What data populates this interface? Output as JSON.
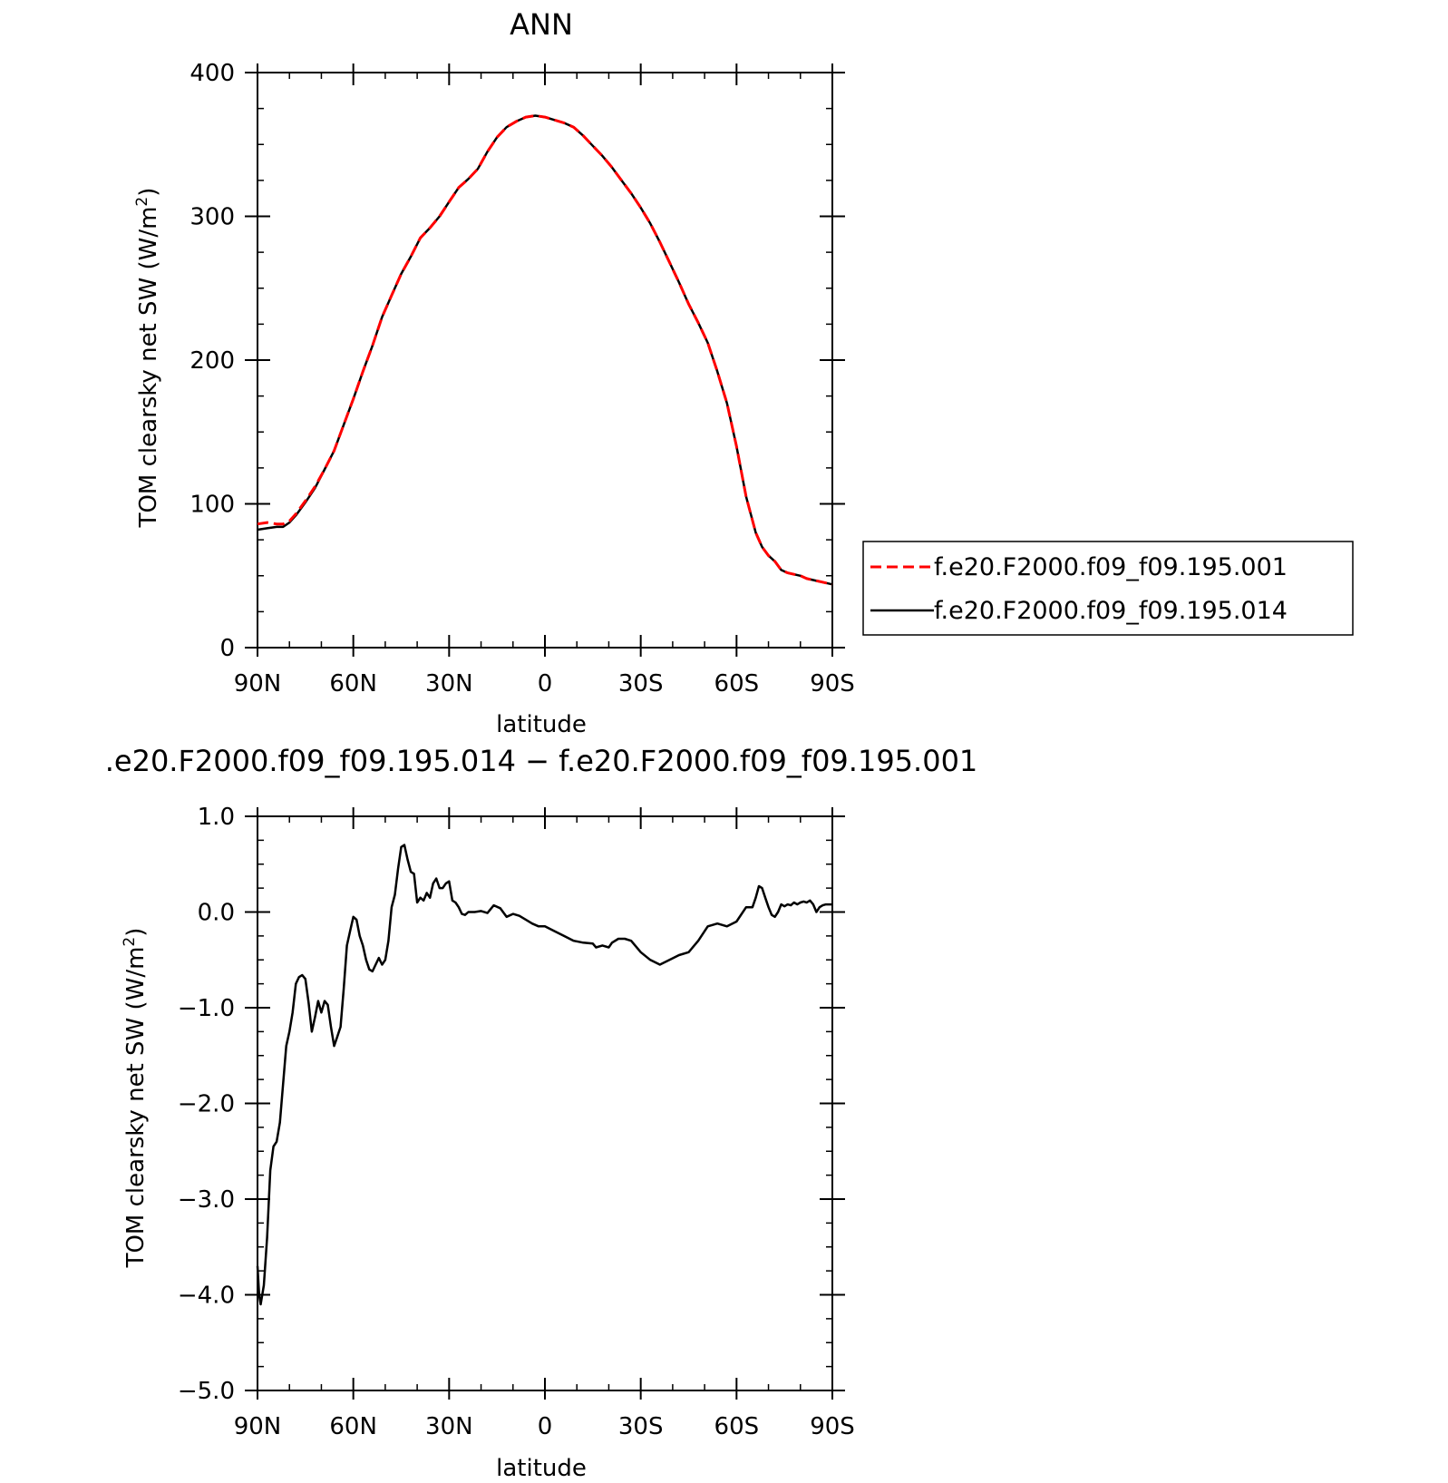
{
  "chart_data": [
    {
      "type": "line",
      "title": "ANN",
      "xlabel": "latitude",
      "ylabel": "TOM clearsky net SW (W/m²)",
      "ylabel_main": "TOM clearsky net SW (W/m",
      "ylabel_sup": "2",
      "ylabel_end": ")",
      "xlim": [
        90,
        -90
      ],
      "ylim": [
        0,
        400
      ],
      "x_ticks": [
        {
          "value": 90,
          "label": "90N"
        },
        {
          "value": 60,
          "label": "60N"
        },
        {
          "value": 30,
          "label": "30N"
        },
        {
          "value": 0,
          "label": "0"
        },
        {
          "value": -30,
          "label": "30S"
        },
        {
          "value": -60,
          "label": "60S"
        },
        {
          "value": -90,
          "label": "90S"
        }
      ],
      "y_ticks": [
        {
          "value": 0,
          "label": "0"
        },
        {
          "value": 100,
          "label": "100"
        },
        {
          "value": 200,
          "label": "200"
        },
        {
          "value": 300,
          "label": "300"
        },
        {
          "value": 400,
          "label": "400"
        }
      ],
      "legend_position": "right",
      "series": [
        {
          "name": "f.e20.F2000.f09_f09.195.001",
          "color": "#ff0000",
          "dash": "dashed",
          "x": [
            90,
            87,
            84,
            82,
            80,
            78,
            75,
            72,
            69,
            66,
            63,
            60,
            57,
            54,
            51,
            48,
            45,
            42,
            39,
            36,
            33,
            30,
            27,
            24,
            21,
            18,
            15,
            12,
            9,
            6,
            3,
            0,
            -3,
            -6,
            -9,
            -12,
            -15,
            -18,
            -21,
            -24,
            -27,
            -30,
            -33,
            -36,
            -39,
            -42,
            -45,
            -48,
            -51,
            -54,
            -57,
            -60,
            -63,
            -66,
            -68,
            -70,
            -72,
            -74,
            -76,
            -78,
            -80,
            -82,
            -84,
            -86,
            -88,
            -90
          ],
          "y": [
            86,
            87,
            86,
            86,
            88,
            93,
            102,
            112,
            124,
            137,
            155,
            173,
            192,
            210,
            230,
            245,
            260,
            272,
            285,
            292,
            300,
            310,
            320,
            326,
            333,
            345,
            355,
            362,
            366,
            369,
            370,
            369,
            367,
            365,
            362,
            356,
            349,
            342,
            334,
            325,
            316,
            306,
            295,
            282,
            268,
            254,
            239,
            226,
            212,
            192,
            170,
            140,
            105,
            80,
            70,
            64,
            60,
            54,
            52,
            51,
            50,
            48,
            47,
            46,
            45,
            44
          ]
        },
        {
          "name": "f.e20.F2000.f09_f09.195.014",
          "color": "#000000",
          "dash": "solid",
          "x": [
            90,
            87,
            84,
            82,
            80,
            78,
            75,
            72,
            69,
            66,
            63,
            60,
            57,
            54,
            51,
            48,
            45,
            42,
            39,
            36,
            33,
            30,
            27,
            24,
            21,
            18,
            15,
            12,
            9,
            6,
            3,
            0,
            -3,
            -6,
            -9,
            -12,
            -15,
            -18,
            -21,
            -24,
            -27,
            -30,
            -33,
            -36,
            -39,
            -42,
            -45,
            -48,
            -51,
            -54,
            -57,
            -60,
            -63,
            -66,
            -68,
            -70,
            -72,
            -74,
            -76,
            -78,
            -80,
            -82,
            -84,
            -86,
            -88,
            -90
          ],
          "y": [
            82,
            83,
            84,
            84,
            87,
            92,
            101,
            111,
            124,
            137,
            155,
            173,
            192,
            210,
            230,
            245,
            260,
            272,
            285,
            292,
            300,
            310,
            320,
            326,
            333,
            345,
            355,
            362,
            366,
            369,
            370,
            369,
            367,
            365,
            362,
            356,
            349,
            342,
            334,
            325,
            316,
            306,
            295,
            282,
            268,
            254,
            239,
            226,
            212,
            192,
            170,
            140,
            105,
            80,
            70,
            64,
            60,
            54,
            52,
            51,
            50,
            48,
            47,
            46,
            45,
            44
          ]
        }
      ]
    },
    {
      "type": "line",
      "title": ".e20.F2000.f09_f09.195.014 − f.e20.F2000.f09_f09.195.001",
      "xlabel": "latitude",
      "ylabel": "TOM clearsky net SW (W/m²)",
      "ylabel_main": "TOM clearsky net SW (W/m",
      "ylabel_sup": "2",
      "ylabel_end": ")",
      "xlim": [
        90,
        -90
      ],
      "ylim": [
        -5.0,
        1.0
      ],
      "x_ticks": [
        {
          "value": 90,
          "label": "90N"
        },
        {
          "value": 60,
          "label": "60N"
        },
        {
          "value": 30,
          "label": "30N"
        },
        {
          "value": 0,
          "label": "0"
        },
        {
          "value": -30,
          "label": "30S"
        },
        {
          "value": -60,
          "label": "60S"
        },
        {
          "value": -90,
          "label": "90S"
        }
      ],
      "y_ticks": [
        {
          "value": -5.0,
          "label": "−5.0"
        },
        {
          "value": -4.0,
          "label": "−4.0"
        },
        {
          "value": -3.0,
          "label": "−3.0"
        },
        {
          "value": -2.0,
          "label": "−2.0"
        },
        {
          "value": -1.0,
          "label": "−1.0"
        },
        {
          "value": 0.0,
          "label": "0.0"
        },
        {
          "value": 1.0,
          "label": "1.0"
        }
      ],
      "series": [
        {
          "color": "#000000",
          "dash": "solid",
          "x": [
            90,
            89.5,
            89,
            88,
            87,
            86,
            85,
            84,
            83,
            82,
            81,
            80,
            79,
            78,
            77,
            76,
            75,
            74,
            73,
            72,
            71,
            70,
            69,
            68,
            67,
            66,
            65,
            64,
            63,
            62,
            61,
            60,
            59,
            58,
            57,
            56,
            55,
            54,
            53,
            52,
            51,
            50,
            49,
            48,
            47,
            46,
            45,
            44,
            43,
            42,
            41,
            40,
            39,
            38,
            37,
            36,
            35,
            34,
            33,
            32,
            31,
            30,
            29,
            28,
            27,
            26,
            25,
            24,
            22,
            20,
            18,
            16,
            14,
            12,
            10,
            8,
            6,
            4,
            2,
            0,
            -3,
            -6,
            -9,
            -12,
            -15,
            -16,
            -18,
            -20,
            -21,
            -23,
            -25,
            -27,
            -30,
            -33,
            -36,
            -39,
            -42,
            -45,
            -48,
            -51,
            -54,
            -57,
            -60,
            -63,
            -65,
            -66,
            -67,
            -68,
            -69,
            -70,
            -71,
            -72,
            -73,
            -74,
            -75,
            -76,
            -77,
            -78,
            -79,
            -80,
            -81,
            -82,
            -83,
            -84,
            -85,
            -86,
            -87,
            -88,
            -90
          ],
          "y": [
            -3.7,
            -4.0,
            -4.1,
            -3.9,
            -3.4,
            -2.7,
            -2.45,
            -2.4,
            -2.2,
            -1.8,
            -1.4,
            -1.25,
            -1.05,
            -0.75,
            -0.68,
            -0.66,
            -0.7,
            -0.95,
            -1.25,
            -1.1,
            -0.93,
            -1.05,
            -0.93,
            -0.97,
            -1.2,
            -1.4,
            -1.3,
            -1.2,
            -0.8,
            -0.35,
            -0.2,
            -0.05,
            -0.08,
            -0.25,
            -0.35,
            -0.5,
            -0.6,
            -0.62,
            -0.55,
            -0.48,
            -0.55,
            -0.5,
            -0.3,
            0.05,
            0.18,
            0.45,
            0.68,
            0.7,
            0.55,
            0.42,
            0.4,
            0.1,
            0.15,
            0.12,
            0.2,
            0.15,
            0.3,
            0.35,
            0.25,
            0.25,
            0.3,
            0.32,
            0.12,
            0.1,
            0.05,
            -0.02,
            -0.03,
            0.0,
            0.0,
            0.01,
            -0.01,
            0.07,
            0.04,
            -0.05,
            -0.02,
            -0.04,
            -0.08,
            -0.12,
            -0.15,
            -0.15,
            -0.2,
            -0.25,
            -0.3,
            -0.32,
            -0.33,
            -0.37,
            -0.35,
            -0.37,
            -0.32,
            -0.28,
            -0.28,
            -0.3,
            -0.42,
            -0.5,
            -0.55,
            -0.5,
            -0.45,
            -0.42,
            -0.3,
            -0.15,
            -0.12,
            -0.15,
            -0.1,
            0.05,
            0.05,
            0.15,
            0.27,
            0.25,
            0.15,
            0.05,
            -0.03,
            -0.05,
            0.0,
            0.08,
            0.06,
            0.08,
            0.07,
            0.1,
            0.08,
            0.1,
            0.11,
            0.1,
            0.12,
            0.08,
            0.0,
            0.05,
            0.07,
            0.08,
            0.08
          ]
        }
      ]
    }
  ]
}
